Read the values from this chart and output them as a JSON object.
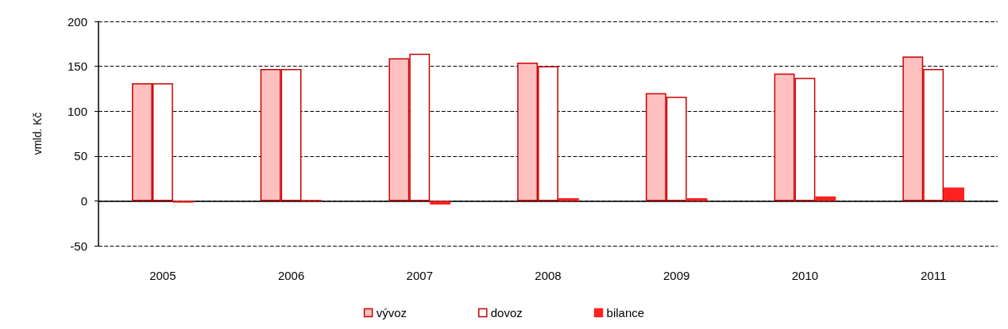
{
  "chart_data": {
    "type": "bar",
    "ylabel": "vmld. Kč",
    "categories": [
      "2005",
      "2006",
      "2007",
      "2008",
      "2009",
      "2010",
      "2011"
    ],
    "series": [
      {
        "name": "vývoz",
        "color": "#ffc0c0",
        "values": [
          131,
          147,
          159,
          154,
          120,
          142,
          161
        ]
      },
      {
        "name": "dovoz",
        "color": "#ffffff",
        "values": [
          131,
          147,
          164,
          150,
          116,
          137,
          147
        ]
      },
      {
        "name": "bilance",
        "color": "#ff2020",
        "values": [
          -2,
          1,
          -4,
          3,
          3,
          5,
          15
        ]
      }
    ],
    "ylim": [
      -50,
      200
    ],
    "yticks": [
      -50,
      0,
      50,
      100,
      150,
      200
    ],
    "grid": "y",
    "legend": "bottom"
  }
}
